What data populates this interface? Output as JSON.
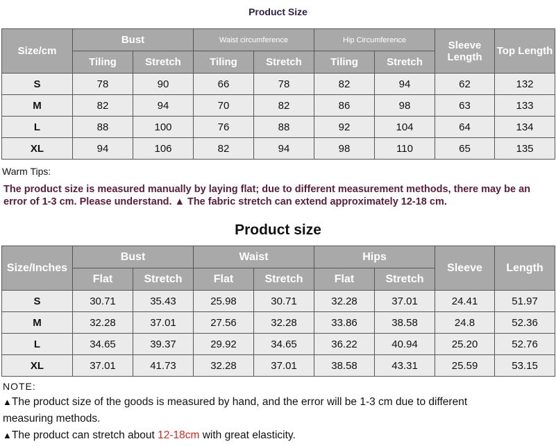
{
  "table1": {
    "title": "Product Size",
    "size_label": "Size/cm",
    "groups": [
      "Bust",
      "Waist circumference",
      "Hip Circumference"
    ],
    "sub": [
      "Tiling",
      "Stretch"
    ],
    "sleeve": "Sleeve Length",
    "top": "Top Length",
    "rows": [
      [
        "S",
        "78",
        "90",
        "66",
        "78",
        "82",
        "94",
        "62",
        "132"
      ],
      [
        "M",
        "82",
        "94",
        "70",
        "82",
        "86",
        "98",
        "63",
        "133"
      ],
      [
        "L",
        "88",
        "100",
        "76",
        "88",
        "92",
        "104",
        "64",
        "134"
      ],
      [
        "XL",
        "94",
        "106",
        "82",
        "94",
        "98",
        "110",
        "65",
        "135"
      ]
    ]
  },
  "tips": {
    "label": "Warm Tips:",
    "text": "The product size is measured manually by laying flat; due to different measurement methods, there may be an error of 1-3 cm. Please understand. ▲ The fabric stretch can extend approximately 12-18 cm."
  },
  "table2": {
    "title": "Product size",
    "size_label": "Size/Inches",
    "groups": [
      "Bust",
      "Waist",
      "Hips"
    ],
    "sub": [
      "Flat",
      "Stretch"
    ],
    "sleeve": "Sleeve",
    "length": "Length",
    "rows": [
      [
        "S",
        "30.71",
        "35.43",
        "25.98",
        "30.71",
        "32.28",
        "37.01",
        "24.41",
        "51.97"
      ],
      [
        "M",
        "32.28",
        "37.01",
        "27.56",
        "32.28",
        "33.86",
        "38.58",
        "24.8",
        "52.36"
      ],
      [
        "L",
        "34.65",
        "39.37",
        "29.92",
        "34.65",
        "36.22",
        "40.94",
        "25.20",
        "52.76"
      ],
      [
        "XL",
        "37.01",
        "41.73",
        "32.28",
        "37.01",
        "38.58",
        "43.31",
        "25.59",
        "53.15"
      ]
    ]
  },
  "note": {
    "label": "NOTE:",
    "line1_marker": "▲",
    "line1": "The product size of the goods is measured by hand, and the error will be 1-3 cm due to different",
    "line2": "measuring methods.",
    "line3_marker": "▲",
    "line3_pre": "The product can stretch about ",
    "line3_hl": "12-18cm",
    "line3_post": " with great elasticity."
  }
}
